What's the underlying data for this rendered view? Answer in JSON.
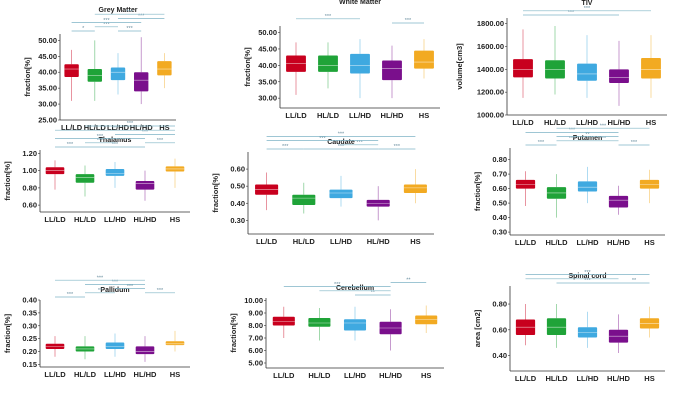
{
  "figure": {
    "categories": [
      "LL/LD",
      "HL/LD",
      "LL/HD",
      "HL/HD",
      "HS"
    ],
    "colors": [
      "#c8001e",
      "#1fa338",
      "#3fa9e0",
      "#7a0f8c",
      "#f2aa22"
    ],
    "bracket_color": "#7fb4c6",
    "outlier_color": "#e09a9a"
  },
  "chart_data": [
    {
      "type": "box",
      "title": "Grey Matter",
      "ylabel": "fraction[%]",
      "ylim": [
        25,
        52
      ],
      "yticks": [
        25,
        30,
        35,
        40,
        45,
        50
      ],
      "tick_labels": [
        "25.00",
        "30.00",
        "35.00",
        "40.00",
        "45.00",
        "50.00"
      ],
      "boxes": [
        {
          "min": 31,
          "q1": 38.5,
          "median": 41,
          "q3": 42.5,
          "max": 47
        },
        {
          "min": 31,
          "q1": 37,
          "median": 39,
          "q3": 41,
          "max": 50
        },
        {
          "min": 33,
          "q1": 37.5,
          "median": 40,
          "q3": 41.5,
          "max": 46
        },
        {
          "min": 30,
          "q1": 34,
          "median": 37.5,
          "q3": 40,
          "max": 51
        },
        {
          "min": 35,
          "q1": 39,
          "median": 41,
          "q3": 43.5,
          "max": 46
        }
      ],
      "brackets": [
        {
          "a": 0,
          "b": 1,
          "label": "*",
          "level": 0
        },
        {
          "a": 1,
          "b": 2,
          "label": "***",
          "level": 1
        },
        {
          "a": 2,
          "b": 3,
          "label": "***",
          "level": 0
        },
        {
          "a": 0,
          "b": 3,
          "label": "***",
          "level": 2
        },
        {
          "a": 2,
          "b": 4,
          "label": "***",
          "level": 3
        },
        {
          "a": 1,
          "b": 4,
          "label": "***",
          "level": 4
        }
      ]
    },
    {
      "type": "box",
      "title": "White Matter",
      "ylabel": "fraction[%]",
      "ylim": [
        27,
        52
      ],
      "yticks": [
        30,
        35,
        40,
        45,
        50
      ],
      "tick_labels": [
        "30.00",
        "35.00",
        "40.00",
        "45.00",
        "50.00"
      ],
      "boxes": [
        {
          "min": 31,
          "q1": 38,
          "median": 40.5,
          "q3": 43,
          "max": 47
        },
        {
          "min": 33,
          "q1": 38,
          "median": 40,
          "q3": 43,
          "max": 47
        },
        {
          "min": 30,
          "q1": 37.5,
          "median": 40,
          "q3": 43.5,
          "max": 48
        },
        {
          "min": 30,
          "q1": 35.5,
          "median": 39,
          "q3": 41.5,
          "max": 46
        },
        {
          "min": 36,
          "q1": 39,
          "median": 41,
          "q3": 44.5,
          "max": 48
        }
      ],
      "brackets": [
        {
          "a": 0,
          "b": 2,
          "label": "***",
          "level": 1
        },
        {
          "a": 3,
          "b": 4,
          "label": "***",
          "level": 0
        }
      ]
    },
    {
      "type": "box",
      "title": "TIV",
      "ylabel": "volume[cm3]",
      "ylim": [
        1000,
        1850
      ],
      "yticks": [
        1000,
        1200,
        1400,
        1600,
        1800
      ],
      "tick_labels": [
        "1000.00",
        "1200.00",
        "1400.00",
        "1600.00",
        "1800.00"
      ],
      "boxes": [
        {
          "min": 1150,
          "q1": 1330,
          "median": 1400,
          "q3": 1490,
          "max": 1750
        },
        {
          "min": 1180,
          "q1": 1320,
          "median": 1400,
          "q3": 1480,
          "max": 1780
        },
        {
          "min": 1150,
          "q1": 1300,
          "median": 1360,
          "q3": 1450,
          "max": 1700
        },
        {
          "min": 1080,
          "q1": 1280,
          "median": 1330,
          "q3": 1400,
          "max": 1650
        },
        {
          "min": 1150,
          "q1": 1320,
          "median": 1400,
          "q3": 1500,
          "max": 1700
        }
      ],
      "brackets": [
        {
          "a": 0,
          "b": 3,
          "label": "***",
          "level": 0
        },
        {
          "a": 0,
          "b": 4,
          "label": "***",
          "level": 1
        }
      ]
    },
    {
      "type": "box",
      "title": "Thalamus",
      "ylabel": "fraction[%]",
      "ylim": [
        0.52,
        1.24
      ],
      "yticks": [
        0.6,
        0.8,
        1.0,
        1.2
      ],
      "tick_labels": [
        "0.60",
        "0.80",
        "1.00",
        "1.20"
      ],
      "boxes": [
        {
          "min": 0.78,
          "q1": 0.96,
          "median": 1.0,
          "q3": 1.04,
          "max": 1.12
        },
        {
          "min": 0.7,
          "q1": 0.86,
          "median": 0.92,
          "q3": 0.96,
          "max": 1.06
        },
        {
          "min": 0.8,
          "q1": 0.94,
          "median": 0.97,
          "q3": 1.02,
          "max": 1.1
        },
        {
          "min": 0.65,
          "q1": 0.78,
          "median": 0.85,
          "q3": 0.88,
          "max": 1.0
        },
        {
          "min": 0.8,
          "q1": 0.99,
          "median": 1.02,
          "q3": 1.05,
          "max": 1.14
        }
      ],
      "brackets": [
        {
          "a": 0,
          "b": 1,
          "label": "***",
          "level": 0
        },
        {
          "a": 1,
          "b": 3,
          "label": "***",
          "level": 0
        },
        {
          "a": 1,
          "b": 2,
          "label": "***",
          "level": 1
        },
        {
          "a": 0,
          "b": 3,
          "label": "***",
          "level": 2
        },
        {
          "a": 3,
          "b": 4,
          "label": "***",
          "level": 1
        },
        {
          "a": 2,
          "b": 4,
          "label": "***",
          "level": 3
        },
        {
          "a": 0,
          "b": 4,
          "label": "***",
          "level": 4
        },
        {
          "a": 1,
          "b": 4,
          "label": "***",
          "level": 5
        }
      ]
    },
    {
      "type": "box",
      "title": "Caudate",
      "ylabel": "fraction[%]",
      "ylim": [
        0.22,
        0.7
      ],
      "yticks": [
        0.3,
        0.4,
        0.5,
        0.6
      ],
      "tick_labels": [
        "0.30",
        "0.40",
        "0.50",
        "0.60"
      ],
      "boxes": [
        {
          "min": 0.36,
          "q1": 0.45,
          "median": 0.48,
          "q3": 0.51,
          "max": 0.58
        },
        {
          "min": 0.34,
          "q1": 0.39,
          "median": 0.43,
          "q3": 0.45,
          "max": 0.52
        },
        {
          "min": 0.38,
          "q1": 0.43,
          "median": 0.46,
          "q3": 0.48,
          "max": 0.56
        },
        {
          "min": 0.3,
          "q1": 0.38,
          "median": 0.4,
          "q3": 0.42,
          "max": 0.5
        },
        {
          "min": 0.4,
          "q1": 0.46,
          "median": 0.49,
          "q3": 0.51,
          "max": 0.6
        }
      ],
      "brackets": [
        {
          "a": 0,
          "b": 1,
          "label": "***",
          "level": 0
        },
        {
          "a": 1,
          "b": 3,
          "label": "***",
          "level": 0
        },
        {
          "a": 2,
          "b": 3,
          "label": "***",
          "level": 1
        },
        {
          "a": 3,
          "b": 4,
          "label": "***",
          "level": 0
        },
        {
          "a": 0,
          "b": 3,
          "label": "***",
          "level": 2
        },
        {
          "a": 0,
          "b": 4,
          "label": "***",
          "level": 3
        }
      ]
    },
    {
      "type": "box",
      "title": "Putamen",
      "ylabel": "fraction[%]",
      "ylim": [
        0.28,
        0.88
      ],
      "yticks": [
        0.3,
        0.4,
        0.5,
        0.6,
        0.7,
        0.8
      ],
      "tick_labels": [
        "0.30",
        "0.40",
        "0.50",
        "0.60",
        "0.70",
        "0.80"
      ],
      "boxes": [
        {
          "min": 0.48,
          "q1": 0.6,
          "median": 0.63,
          "q3": 0.66,
          "max": 0.72
        },
        {
          "min": 0.4,
          "q1": 0.53,
          "median": 0.57,
          "q3": 0.61,
          "max": 0.7
        },
        {
          "min": 0.5,
          "q1": 0.58,
          "median": 0.61,
          "q3": 0.65,
          "max": 0.75
        },
        {
          "min": 0.42,
          "q1": 0.47,
          "median": 0.52,
          "q3": 0.55,
          "max": 0.62
        },
        {
          "min": 0.5,
          "q1": 0.6,
          "median": 0.63,
          "q3": 0.66,
          "max": 0.73
        }
      ],
      "brackets": [
        {
          "a": 0,
          "b": 1,
          "label": "***",
          "level": 0
        },
        {
          "a": 1,
          "b": 2,
          "label": "***",
          "level": 1
        },
        {
          "a": 2,
          "b": 3,
          "label": "***",
          "level": 1
        },
        {
          "a": 3,
          "b": 4,
          "label": "***",
          "level": 0
        },
        {
          "a": 1,
          "b": 3,
          "label": "**",
          "level": 2
        },
        {
          "a": 0,
          "b": 3,
          "label": "***",
          "level": 3
        },
        {
          "a": 1,
          "b": 4,
          "label": "***",
          "level": 4
        }
      ]
    },
    {
      "type": "box",
      "title": "Pallidum",
      "ylabel": "fraction[%]",
      "ylim": [
        0.14,
        0.4
      ],
      "yticks": [
        0.15,
        0.2,
        0.25,
        0.3,
        0.35,
        0.4
      ],
      "tick_labels": [
        "0.15",
        "0.20",
        "0.25",
        "0.30",
        "0.35",
        "0.40"
      ],
      "boxes": [
        {
          "min": 0.18,
          "q1": 0.21,
          "median": 0.22,
          "q3": 0.23,
          "max": 0.26
        },
        {
          "min": 0.17,
          "q1": 0.2,
          "median": 0.21,
          "q3": 0.22,
          "max": 0.26
        },
        {
          "min": 0.18,
          "q1": 0.21,
          "median": 0.22,
          "q3": 0.235,
          "max": 0.27
        },
        {
          "min": 0.16,
          "q1": 0.19,
          "median": 0.2,
          "q3": 0.22,
          "max": 0.26
        },
        {
          "min": 0.2,
          "q1": 0.225,
          "median": 0.23,
          "q3": 0.24,
          "max": 0.28
        }
      ],
      "brackets": [
        {
          "a": 0,
          "b": 1,
          "label": "***",
          "level": 0
        },
        {
          "a": 1,
          "b": 2,
          "label": "**",
          "level": 1
        },
        {
          "a": 3,
          "b": 4,
          "label": "***",
          "level": 1
        },
        {
          "a": 2,
          "b": 3,
          "label": "***",
          "level": 2
        },
        {
          "a": 1,
          "b": 3,
          "label": "***",
          "level": 3
        },
        {
          "a": 0,
          "b": 3,
          "label": "***",
          "level": 4
        }
      ]
    },
    {
      "type": "box",
      "title": "Cerebellum",
      "ylabel": "fraction[%]",
      "ylim": [
        4.6,
        10.2
      ],
      "yticks": [
        5,
        6,
        7,
        8,
        9,
        10
      ],
      "tick_labels": [
        "5.00",
        "6.00",
        "7.00",
        "8.00",
        "9.00",
        "10.00"
      ],
      "boxes": [
        {
          "min": 7.0,
          "q1": 8.0,
          "median": 8.3,
          "q3": 8.7,
          "max": 9.5
        },
        {
          "min": 6.8,
          "q1": 7.9,
          "median": 8.2,
          "q3": 8.6,
          "max": 9.4
        },
        {
          "min": 6.8,
          "q1": 7.6,
          "median": 8.2,
          "q3": 8.5,
          "max": 9.5
        },
        {
          "min": 6.0,
          "q1": 7.3,
          "median": 7.8,
          "q3": 8.3,
          "max": 9.3
        },
        {
          "min": 7.4,
          "q1": 8.1,
          "median": 8.5,
          "q3": 8.8,
          "max": 9.6
        }
      ],
      "brackets": [
        {
          "a": 2,
          "b": 3,
          "label": "**",
          "level": 0
        },
        {
          "a": 3,
          "b": 4,
          "label": "**",
          "level": 3
        },
        {
          "a": 1,
          "b": 3,
          "label": "***",
          "level": 1
        },
        {
          "a": 0,
          "b": 3,
          "label": "***",
          "level": 2
        }
      ]
    },
    {
      "type": "box",
      "title": "Spinal cord",
      "ylabel": "area [cm2]",
      "ylim": [
        0.28,
        0.94
      ],
      "yticks": [
        0.4,
        0.6,
        0.8
      ],
      "tick_labels": [
        "0.40",
        "0.60",
        "0.80"
      ],
      "boxes": [
        {
          "min": 0.48,
          "q1": 0.56,
          "median": 0.62,
          "q3": 0.68,
          "max": 0.8
        },
        {
          "min": 0.46,
          "q1": 0.56,
          "median": 0.62,
          "q3": 0.69,
          "max": 0.8
        },
        {
          "min": 0.46,
          "q1": 0.54,
          "median": 0.58,
          "q3": 0.62,
          "max": 0.74
        },
        {
          "min": 0.42,
          "q1": 0.5,
          "median": 0.55,
          "q3": 0.6,
          "max": 0.72
        },
        {
          "min": 0.54,
          "q1": 0.61,
          "median": 0.65,
          "q3": 0.69,
          "max": 0.78
        }
      ],
      "brackets": [
        {
          "a": 0,
          "b": 3,
          "label": "**",
          "level": 1
        },
        {
          "a": 1,
          "b": 3,
          "label": "***",
          "level": 0
        },
        {
          "a": 3,
          "b": 4,
          "label": "**",
          "level": 0
        },
        {
          "a": 0,
          "b": 4,
          "label": "***",
          "level": 2
        }
      ]
    }
  ]
}
